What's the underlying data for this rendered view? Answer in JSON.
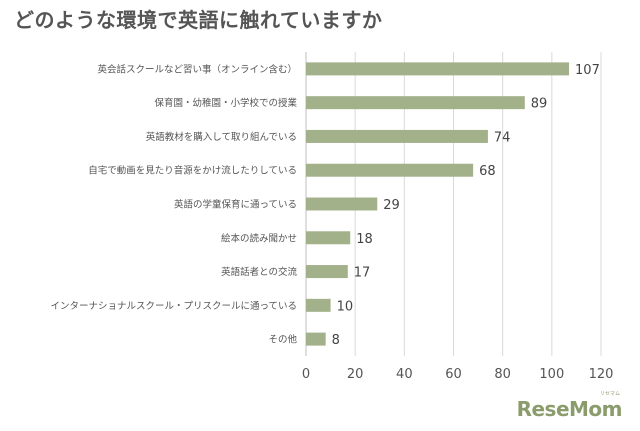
{
  "chart_data": {
    "type": "bar",
    "orientation": "horizontal",
    "title": "どのような環境で英語に触れていますか",
    "categories": [
      "英会話スクールなど習い事（オンライン含む）",
      "保育園・幼稚園・小学校での授業",
      "英語教材を購入して取り組んでいる",
      "自宅で動画を見たり音源をかけ流したりしている",
      "英語の学童保育に通っている",
      "絵本の読み聞かせ",
      "英語話者との交流",
      "インターナショナルスクール・プリスクールに通っている",
      "その他"
    ],
    "values": [
      107,
      89,
      74,
      68,
      29,
      18,
      17,
      10,
      8
    ],
    "xlim": [
      0,
      120
    ],
    "xticks": [
      0,
      20,
      40,
      60,
      80,
      100,
      120
    ],
    "grid": "vertical",
    "bar_color": "#a3b18a"
  },
  "logo": {
    "text": "ReseMom",
    "small_text": "リセマム"
  }
}
